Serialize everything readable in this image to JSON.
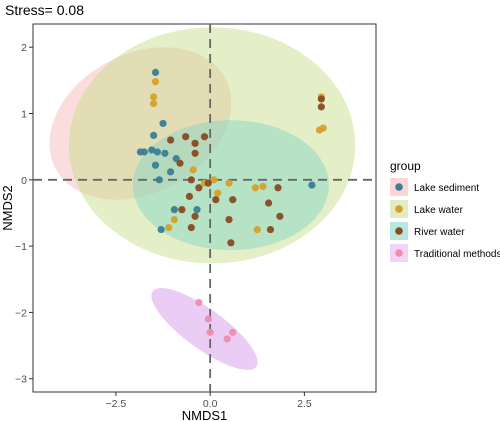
{
  "chart_data": {
    "type": "scatter",
    "title": "Stress= 0.08",
    "xlabel": "NMDS1",
    "ylabel": "NMDS2",
    "xlim": [
      -4.7,
      4.4
    ],
    "ylim": [
      -3.2,
      2.35
    ],
    "x_ticks": [
      -2.5,
      0,
      2.5
    ],
    "x_tick_labels": [
      "−2.5",
      "0.0",
      "2.5"
    ],
    "y_ticks": [
      -3,
      -2,
      -1,
      0,
      1,
      2
    ],
    "y_tick_labels": [
      "−3",
      "−2",
      "−1",
      "0",
      "1",
      "2"
    ],
    "grid": false,
    "reference_lines": {
      "x": 0,
      "y": 0,
      "style": "dashed",
      "color": "#666666"
    },
    "legend": {
      "title": "group",
      "placement": "right",
      "entries": [
        {
          "label": "Lake sediment",
          "color": "#3a7f95"
        },
        {
          "label": "Lake water",
          "color": "#d6a02b"
        },
        {
          "label": "River water",
          "color": "#8b4a22"
        },
        {
          "label": "Traditional methods",
          "color": "#f08bb0"
        }
      ]
    },
    "ellipses": [
      {
        "group": "Lake sediment",
        "cx": -1.85,
        "cy": 0.85,
        "rx": 2.55,
        "ry": 1.05,
        "angle": -28,
        "color": "#f9b4b4",
        "opacity": 0.45
      },
      {
        "group": "Lake water",
        "cx": 0.05,
        "cy": 0.52,
        "rx": 3.8,
        "ry": 1.78,
        "angle": 0,
        "color": "#c9dd8f",
        "opacity": 0.5
      },
      {
        "group": "River water",
        "cx": 0.55,
        "cy": -0.08,
        "rx": 2.6,
        "ry": 0.98,
        "angle": 0,
        "color": "#7ed3c4",
        "opacity": 0.45
      },
      {
        "group": "Traditional methods",
        "cx": -0.15,
        "cy": -2.25,
        "rx": 1.7,
        "ry": 0.3,
        "angle": 36,
        "color": "#e0b0ee",
        "opacity": 0.65
      }
    ],
    "series": [
      {
        "name": "Lake sediment",
        "color": "#3a7f95",
        "points": [
          [
            -1.45,
            1.62
          ],
          [
            -1.25,
            0.85
          ],
          [
            -1.5,
            0.67
          ],
          [
            -1.75,
            0.42
          ],
          [
            -1.55,
            0.45
          ],
          [
            -1.4,
            0.42
          ],
          [
            -1.2,
            0.4
          ],
          [
            -1.45,
            0.22
          ],
          [
            -0.9,
            0.32
          ],
          [
            -1.05,
            0.12
          ],
          [
            -1.85,
            0.42
          ],
          [
            -1.35,
            0.0
          ],
          [
            -0.95,
            -0.45
          ],
          [
            -1.3,
            -0.75
          ],
          [
            2.7,
            -0.08
          ],
          [
            -0.35,
            -0.45
          ]
        ]
      },
      {
        "name": "Lake water",
        "color": "#d6a02b",
        "points": [
          [
            -1.45,
            1.48
          ],
          [
            -1.5,
            1.25
          ],
          [
            -1.5,
            1.15
          ],
          [
            -1.1,
            -0.72
          ],
          [
            -0.45,
            0.15
          ],
          [
            -0.15,
            -0.05
          ],
          [
            0.1,
            0.0
          ],
          [
            0.2,
            -0.2
          ],
          [
            0.5,
            -0.05
          ],
          [
            1.2,
            -0.12
          ],
          [
            1.4,
            -0.1
          ],
          [
            1.25,
            -0.75
          ],
          [
            2.95,
            1.25
          ],
          [
            2.9,
            0.75
          ],
          [
            3.0,
            0.78
          ],
          [
            -0.95,
            -0.6
          ]
        ]
      },
      {
        "name": "River water",
        "color": "#8b4a22",
        "points": [
          [
            -0.65,
            0.65
          ],
          [
            -1.05,
            0.6
          ],
          [
            -0.4,
            0.55
          ],
          [
            -0.15,
            0.65
          ],
          [
            -0.4,
            0.4
          ],
          [
            -0.8,
            0.25
          ],
          [
            -0.5,
            0.0
          ],
          [
            -0.3,
            -0.12
          ],
          [
            -0.55,
            -0.25
          ],
          [
            -0.75,
            -0.45
          ],
          [
            -0.4,
            -0.55
          ],
          [
            -0.5,
            -0.72
          ],
          [
            0.15,
            -0.3
          ],
          [
            0.6,
            -0.3
          ],
          [
            0.5,
            -0.6
          ],
          [
            0.55,
            -0.95
          ],
          [
            1.55,
            -0.35
          ],
          [
            1.8,
            -0.12
          ],
          [
            1.85,
            -0.55
          ],
          [
            1.6,
            -0.75
          ],
          [
            2.95,
            1.1
          ],
          [
            2.95,
            1.22
          ],
          [
            -0.05,
            -0.05
          ]
        ]
      },
      {
        "name": "Traditional methods",
        "color": "#f08bb0",
        "points": [
          [
            -0.3,
            -1.85
          ],
          [
            -0.05,
            -2.1
          ],
          [
            0.0,
            -2.3
          ],
          [
            0.45,
            -2.4
          ],
          [
            0.6,
            -2.3
          ]
        ]
      }
    ]
  }
}
